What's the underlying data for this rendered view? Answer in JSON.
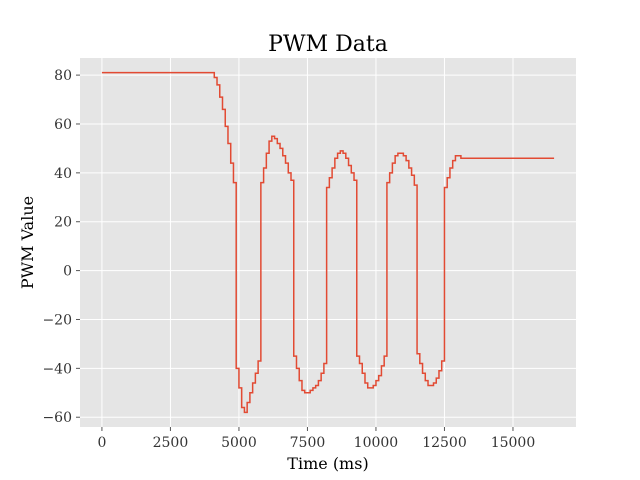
{
  "chart_data": {
    "type": "line",
    "title": "PWM Data",
    "xlabel": "Time (ms)",
    "ylabel": "PWM Value",
    "xlim": [
      -800,
      17300
    ],
    "ylim": [
      -64,
      87
    ],
    "xticks": [
      0,
      2500,
      5000,
      7500,
      10000,
      12500,
      15000
    ],
    "yticks": [
      -60,
      -40,
      -20,
      0,
      20,
      40,
      60,
      80
    ],
    "grid": true,
    "background": "#e5e5e5",
    "line_color": "#e24a33",
    "series": [
      {
        "x": [
          0,
          4000,
          4100,
          4200,
          4300,
          4400,
          4500,
          4600,
          4700,
          4800,
          4900,
          5000,
          5100,
          5200,
          5300,
          5400,
          5500,
          5600,
          5700,
          5800,
          5900,
          6000,
          6100,
          6200,
          6300,
          6400,
          6500,
          6600,
          6700,
          6800,
          6900,
          7000,
          7100,
          7200,
          7300,
          7400,
          7500,
          7600,
          7700,
          7800,
          7900,
          8000,
          8100,
          8200,
          8300,
          8400,
          8500,
          8600,
          8700,
          8800,
          8900,
          9000,
          9100,
          9200,
          9300,
          9400,
          9500,
          9600,
          9700,
          9800,
          9900,
          10000,
          10100,
          10200,
          10300,
          10400,
          10500,
          10600,
          10700,
          10800,
          10900,
          11000,
          11100,
          11200,
          11300,
          11400,
          11500,
          11600,
          11700,
          11800,
          11900,
          12000,
          12100,
          12200,
          12300,
          12400,
          12500,
          12600,
          12700,
          12800,
          12900,
          13000,
          13100,
          13200,
          16500
        ],
        "y": [
          81,
          81,
          79,
          76,
          71,
          66,
          59,
          52,
          44,
          36,
          -40,
          -48,
          -56,
          -58,
          -54,
          -50,
          -46,
          -42,
          -37,
          36,
          42,
          48,
          53,
          55,
          54,
          52,
          50,
          47,
          44,
          40,
          37,
          -35,
          -40,
          -45,
          -49,
          -50,
          -50,
          -49,
          -48,
          -47,
          -45,
          -42,
          -38,
          34,
          38,
          42,
          46,
          48,
          49,
          48,
          46,
          43,
          40,
          37,
          -35,
          -38,
          -42,
          -46,
          -48,
          -48,
          -47,
          -45,
          -43,
          -39,
          -35,
          36,
          40,
          44,
          47,
          48,
          48,
          47,
          45,
          42,
          39,
          35,
          -34,
          -38,
          -42,
          -45,
          -47,
          -47,
          -46,
          -44,
          -41,
          -37,
          34,
          38,
          42,
          45,
          47,
          47,
          46,
          46,
          46
        ]
      }
    ]
  }
}
